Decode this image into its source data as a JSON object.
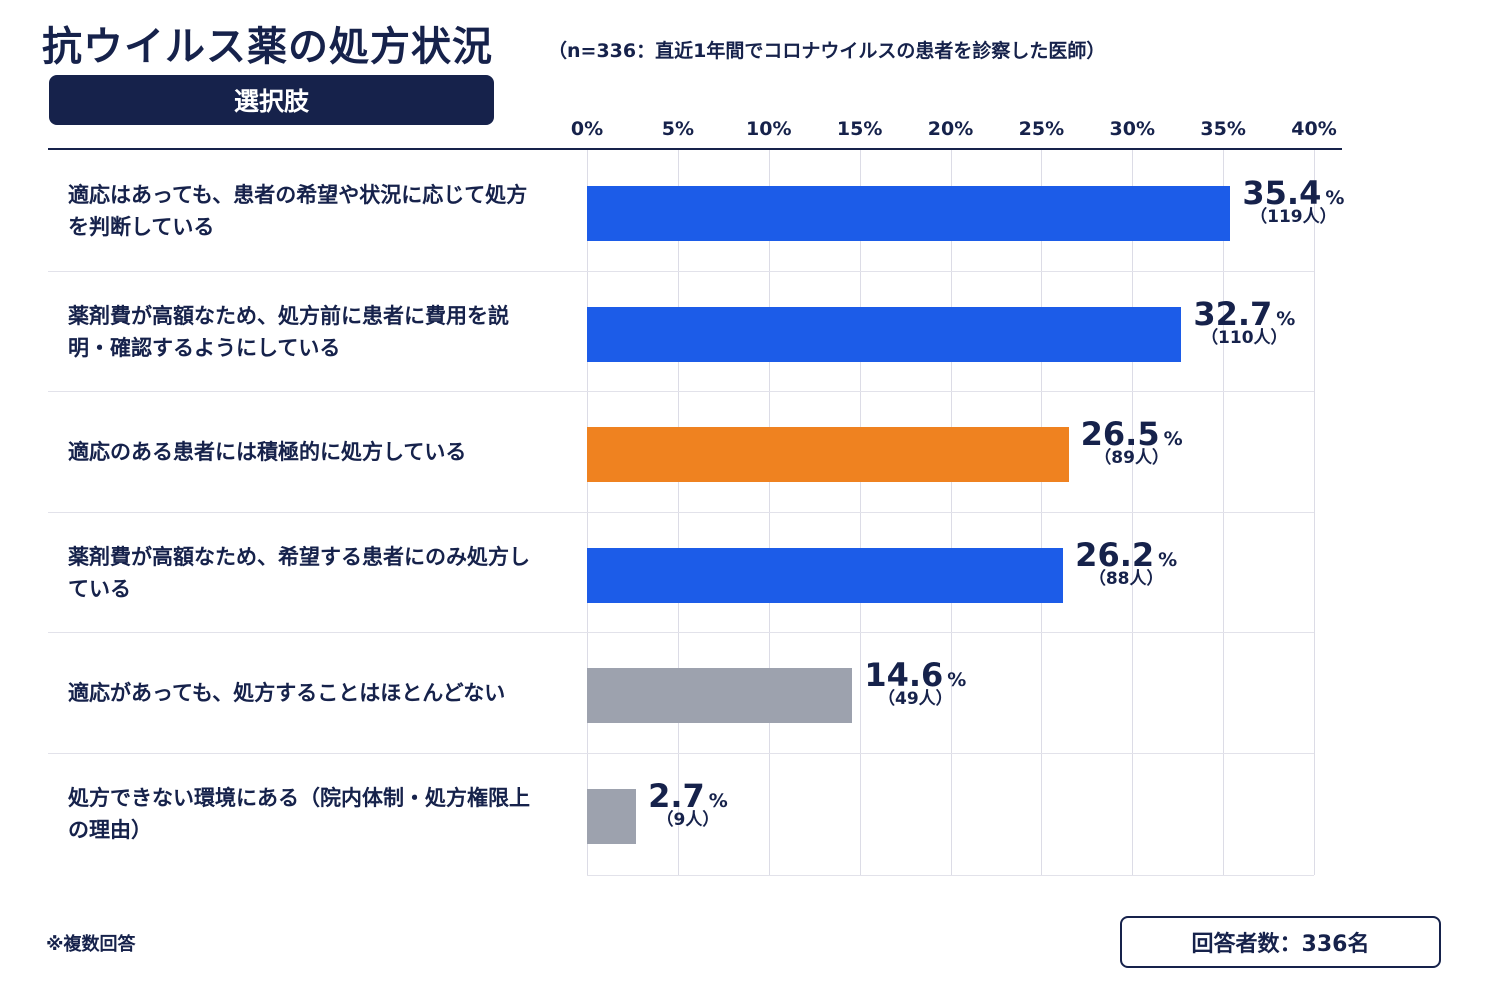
{
  "title": "抗ウイルス薬の処方状況",
  "subtitle": "（n=336：直近1年間でコロナウイルスの患者を診察した医師）",
  "option_header": "選択肢",
  "footnote": "※複数回答",
  "respondents": "回答者数：336名",
  "colors": {
    "navy": "#16224b",
    "blue": "#1c5ce8",
    "orange": "#ef8220",
    "gray": "#9da2ae"
  },
  "chart_data": {
    "type": "bar",
    "orientation": "horizontal",
    "title": "抗ウイルス薬の処方状況",
    "xlim": [
      0,
      40
    ],
    "x_ticks": [
      "0%",
      "5%",
      "10%",
      "15%",
      "20%",
      "25%",
      "30%",
      "35%",
      "40%"
    ],
    "grid": true,
    "categories": [
      "適応はあっても、患者の希望や状況に応じて処方を判断している",
      "薬剤費が高額なため、処方前に患者に費用を説明・確認するようにしている",
      "適応のある患者には積極的に処方している",
      "薬剤費が高額なため、希望する患者にのみ処方している",
      "適応があっても、処方することはほとんどない",
      "処方できない環境にある（院内体制・処方権限上の理由）"
    ],
    "values": [
      35.4,
      32.7,
      26.5,
      26.2,
      14.6,
      2.7
    ],
    "value_labels": [
      "35.4",
      "32.7",
      "26.5",
      "26.2",
      "14.6",
      "2.7"
    ],
    "percent_unit": "%",
    "counts": [
      "（119人）",
      "（110人）",
      "（89人）",
      "（88人）",
      "（49人）",
      "（9人）"
    ],
    "bar_colors": [
      "#1c5ce8",
      "#1c5ce8",
      "#ef8220",
      "#1c5ce8",
      "#9da2ae",
      "#9da2ae"
    ]
  }
}
